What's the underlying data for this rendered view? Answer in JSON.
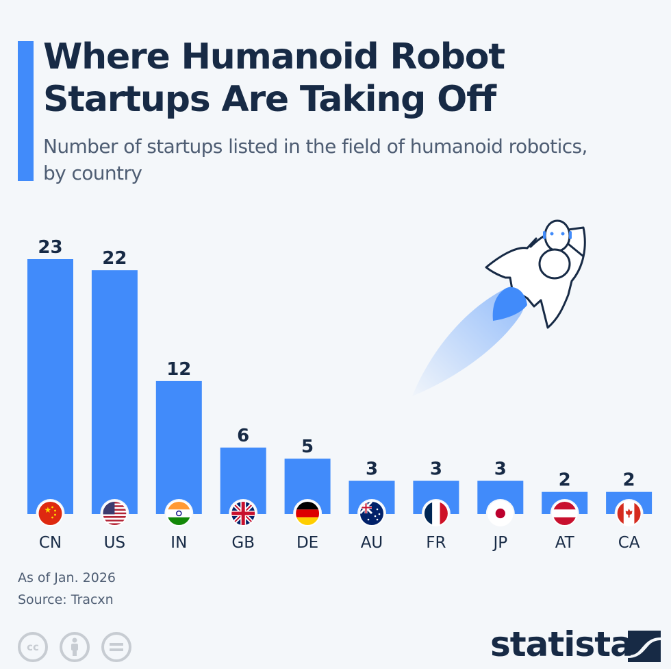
{
  "header": {
    "title_line1": "Where Humanoid Robot",
    "title_line2": "Startups Are Taking Off",
    "subtitle_line1": "Number of startups listed in the field of humanoid robotics,",
    "subtitle_line2": "by country"
  },
  "footer": {
    "date_note": "As of Jan. 2026",
    "source": "Source: Tracxn",
    "license_icons": [
      "cc-icon",
      "attribution-icon",
      "no-derivatives-icon"
    ],
    "cc_label": "cc",
    "brand": "statista"
  },
  "colors": {
    "bar": "#418bfa",
    "text_dark": "#172a45",
    "text_muted": "#4e5d73",
    "background": "#f4f7fa"
  },
  "chart_data": {
    "type": "bar",
    "title": "Where Humanoid Robot Startups Are Taking Off",
    "subtitle": "Number of startups listed in the field of humanoid robotics, by country",
    "categories": [
      "CN",
      "US",
      "IN",
      "GB",
      "DE",
      "AU",
      "FR",
      "JP",
      "AT",
      "CA"
    ],
    "values": [
      23,
      22,
      12,
      6,
      5,
      3,
      3,
      3,
      2,
      2
    ],
    "flags": [
      "china-flag",
      "usa-flag",
      "india-flag",
      "uk-flag",
      "germany-flag",
      "australia-flag",
      "france-flag",
      "japan-flag",
      "austria-flag",
      "canada-flag"
    ],
    "xlabel": "",
    "ylabel": "",
    "ylim": [
      0,
      23
    ],
    "grid": false,
    "data_labels": true,
    "legend": "none"
  }
}
